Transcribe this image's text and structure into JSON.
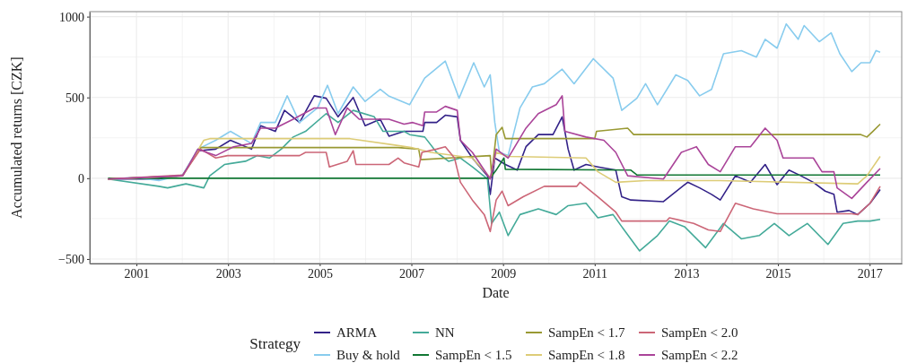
{
  "chart_data": {
    "type": "line",
    "xlabel": "Date",
    "ylabel": "Accumulated returns [CZK]",
    "legend_title": "Strategy",
    "legend": "bottom",
    "grid": true,
    "line_style": "solid",
    "marker": "none",
    "xlim": [
      1999.98,
      2017.7
    ],
    "ylim": [
      -528,
      1031
    ],
    "xticks": [
      2001,
      {
        "value": 2002,
        "label": null
      },
      2003,
      {
        "value": 2004,
        "label": null
      },
      2005,
      {
        "value": 2006,
        "label": null
      },
      2007,
      {
        "value": 2008,
        "label": null
      },
      2009,
      {
        "value": 2010,
        "label": null
      },
      2011,
      {
        "value": 2012,
        "label": null
      },
      2013,
      {
        "value": 2014,
        "label": null
      },
      2015,
      {
        "value": 2016,
        "label": null
      },
      2017
    ],
    "yticks": [
      -500,
      {
        "value": -250,
        "label": null
      },
      0,
      {
        "value": 250,
        "label": null
      },
      500,
      {
        "value": 750,
        "label": null
      },
      1000
    ],
    "series": [
      {
        "name": "ARMA",
        "color": "#332288",
        "x": [
          2000.38,
          2001.49,
          2002.01,
          2002.34,
          2002.73,
          2003.05,
          2003.51,
          2003.71,
          2004.03,
          2004.23,
          2004.56,
          2004.88,
          2005.14,
          2005.4,
          2005.73,
          2005.99,
          2006.32,
          2006.51,
          2006.84,
          2007.03,
          2007.25,
          2007.29,
          2007.55,
          2007.74,
          2008.0,
          2008.07,
          2008.33,
          2008.66,
          2008.72,
          2008.82,
          2009.05,
          2009.31,
          2009.5,
          2009.77,
          2010.09,
          2010.29,
          2010.42,
          2010.55,
          2010.81,
          2011.07,
          2011.46,
          2011.59,
          2011.79,
          2012.5,
          2013.03,
          2013.29,
          2013.55,
          2013.74,
          2014.07,
          2014.4,
          2014.72,
          2014.98,
          2015.24,
          2015.5,
          2015.77,
          2016.03,
          2016.22,
          2016.29,
          2016.55,
          2016.74,
          2017.01,
          2017.23
        ],
        "values": [
          -5,
          -5,
          20,
          170,
          180,
          235,
          180,
          325,
          290,
          420,
          345,
          510,
          495,
          380,
          500,
          325,
          365,
          260,
          290,
          290,
          290,
          345,
          345,
          390,
          380,
          235,
          125,
          15,
          -100,
          125,
          85,
          50,
          195,
          270,
          270,
          380,
          180,
          50,
          85,
          70,
          50,
          -115,
          -135,
          -145,
          -25,
          -60,
          -100,
          -135,
          15,
          -25,
          85,
          -40,
          50,
          15,
          -25,
          -80,
          -100,
          -210,
          -200,
          -225,
          -155,
          -70
        ]
      },
      {
        "name": "Buy & hold",
        "color": "#88CCEE",
        "x": [
          2000.38,
          2000.97,
          2001.49,
          2002.01,
          2002.34,
          2002.73,
          2003.05,
          2003.51,
          2003.71,
          2004.03,
          2004.29,
          2004.56,
          2004.95,
          2005.17,
          2005.4,
          2005.73,
          2005.99,
          2006.32,
          2006.5,
          2006.96,
          2007.29,
          2007.74,
          2008.04,
          2008.36,
          2008.59,
          2008.72,
          2008.82,
          2008.92,
          2009.11,
          2009.37,
          2009.64,
          2009.9,
          2010.29,
          2010.55,
          2010.97,
          2011.4,
          2011.59,
          2011.92,
          2012.11,
          2012.37,
          2012.77,
          2013.03,
          2013.29,
          2013.55,
          2013.81,
          2014.2,
          2014.53,
          2014.72,
          2014.98,
          2015.18,
          2015.44,
          2015.57,
          2015.9,
          2016.16,
          2016.35,
          2016.61,
          2016.81,
          2017.01,
          2017.14,
          2017.23
        ],
        "values": [
          -5,
          5,
          -15,
          20,
          180,
          235,
          290,
          215,
          345,
          345,
          510,
          345,
          435,
          575,
          400,
          565,
          475,
          550,
          510,
          455,
          620,
          725,
          495,
          715,
          565,
          640,
          345,
          160,
          140,
          435,
          565,
          585,
          675,
          585,
          740,
          620,
          420,
          495,
          585,
          455,
          640,
          605,
          510,
          550,
          770,
          790,
          750,
          860,
          805,
          955,
          860,
          945,
          845,
          900,
          770,
          660,
          715,
          715,
          790,
          780
        ]
      },
      {
        "name": "NN",
        "color": "#44AA99",
        "x": [
          2000.38,
          2001.49,
          2001.68,
          2002.08,
          2002.47,
          2002.6,
          2002.92,
          2003.38,
          2003.64,
          2003.9,
          2004.16,
          2004.42,
          2004.69,
          2005.14,
          2005.4,
          2005.73,
          2006.19,
          2006.38,
          2006.84,
          2006.96,
          2007.29,
          2007.55,
          2007.81,
          2008.07,
          2008.33,
          2008.66,
          2008.75,
          2008.92,
          2009.11,
          2009.37,
          2009.77,
          2010.16,
          2010.42,
          2010.81,
          2011.07,
          2011.4,
          2011.59,
          2011.98,
          2012.37,
          2012.63,
          2012.96,
          2013.42,
          2013.81,
          2014.2,
          2014.59,
          2014.92,
          2015.24,
          2015.64,
          2016.09,
          2016.42,
          2016.74,
          2017.01,
          2017.23
        ],
        "values": [
          -5,
          -50,
          -60,
          -35,
          -60,
          15,
          85,
          105,
          140,
          125,
          180,
          255,
          290,
          400,
          345,
          420,
          380,
          290,
          290,
          270,
          255,
          160,
          105,
          125,
          70,
          -5,
          -280,
          -210,
          -355,
          -225,
          -190,
          -225,
          -170,
          -155,
          -245,
          -225,
          -300,
          -450,
          -355,
          -265,
          -300,
          -430,
          -280,
          -375,
          -355,
          -280,
          -355,
          -280,
          -410,
          -280,
          -265,
          -265,
          -255
        ]
      },
      {
        "name": "SampEn < 1.5",
        "color": "#117733",
        "x": [
          2000.38,
          2008.72,
          2008.85,
          2009.02,
          2009.05,
          2011.79,
          2011.92,
          2017.23
        ],
        "values": [
          0,
          0,
          50,
          125,
          55,
          50,
          20,
          20
        ]
      },
      {
        "name": "SampEn < 1.7",
        "color": "#999933",
        "x": [
          2000.38,
          2002.01,
          2002.4,
          2006.71,
          2007.16,
          2007.2,
          2008.72,
          2008.75,
          2008.85,
          2008.98,
          2009.05,
          2011.0,
          2011.04,
          2011.72,
          2011.85,
          2016.81,
          2016.94,
          2017.07,
          2017.23
        ],
        "values": [
          -5,
          15,
          190,
          190,
          180,
          115,
          140,
          15,
          270,
          315,
          245,
          245,
          290,
          310,
          270,
          270,
          255,
          290,
          335
        ]
      },
      {
        "name": "SampEn < 1.8",
        "color": "#DDCC77",
        "x": [
          2000.38,
          2002.01,
          2002.47,
          2002.6,
          2005.66,
          2006.64,
          2007.0,
          2007.42,
          2008.33,
          2008.72,
          2008.85,
          2009.11,
          2010.81,
          2011.07,
          2011.46,
          2012.11,
          2013.74,
          2016.74,
          2016.94,
          2017.23
        ],
        "values": [
          -5,
          15,
          235,
          245,
          245,
          205,
          190,
          160,
          125,
          5,
          160,
          135,
          125,
          40,
          -25,
          -15,
          -15,
          -35,
          15,
          135
        ]
      },
      {
        "name": "SampEn < 2.0",
        "color": "#CC6677",
        "x": [
          2000.38,
          2002.01,
          2002.4,
          2002.73,
          2002.99,
          2004.56,
          2004.69,
          2005.14,
          2005.21,
          2005.6,
          2005.73,
          2005.79,
          2006.51,
          2006.71,
          2006.84,
          2007.16,
          2007.23,
          2007.55,
          2007.74,
          2007.94,
          2008.07,
          2008.33,
          2008.59,
          2008.72,
          2008.85,
          2008.98,
          2009.11,
          2009.44,
          2009.9,
          2010.61,
          2010.68,
          2011.07,
          2011.46,
          2011.59,
          2012.57,
          2012.63,
          2013.16,
          2013.48,
          2013.74,
          2014.07,
          2014.46,
          2014.98,
          2016.61,
          2016.74,
          2017.01,
          2017.23
        ],
        "values": [
          -5,
          20,
          180,
          125,
          140,
          140,
          160,
          160,
          70,
          105,
          170,
          85,
          85,
          125,
          95,
          70,
          160,
          180,
          195,
          125,
          -25,
          -135,
          -225,
          -330,
          -135,
          -80,
          -170,
          -115,
          -50,
          -50,
          -25,
          -115,
          -210,
          -265,
          -265,
          -245,
          -280,
          -320,
          -330,
          -155,
          -190,
          -220,
          -220,
          -225,
          -155,
          -50
        ]
      },
      {
        "name": "SampEn < 2.2",
        "color": "#AA4499",
        "x": [
          2000.38,
          2002.01,
          2002.34,
          2002.73,
          2003.12,
          2003.51,
          2003.71,
          2004.03,
          2004.42,
          2004.88,
          2005.14,
          2005.34,
          2005.6,
          2005.86,
          2006.51,
          2006.84,
          2007.03,
          2007.25,
          2007.29,
          2007.55,
          2007.74,
          2008.0,
          2008.07,
          2008.33,
          2008.72,
          2008.85,
          2009.11,
          2009.5,
          2009.77,
          2010.16,
          2010.29,
          2010.35,
          2010.81,
          2011.2,
          2011.46,
          2011.72,
          2012.5,
          2012.89,
          2013.22,
          2013.48,
          2013.74,
          2014.07,
          2014.4,
          2014.72,
          2014.98,
          2015.11,
          2015.77,
          2015.96,
          2016.22,
          2016.29,
          2016.61,
          2016.94,
          2017.23
        ],
        "values": [
          -5,
          15,
          180,
          140,
          195,
          215,
          310,
          310,
          365,
          435,
          435,
          270,
          435,
          365,
          365,
          335,
          345,
          325,
          410,
          410,
          445,
          420,
          235,
          160,
          -5,
          180,
          125,
          310,
          400,
          455,
          510,
          290,
          255,
          235,
          160,
          15,
          -5,
          160,
          195,
          85,
          40,
          195,
          195,
          310,
          235,
          125,
          125,
          40,
          40,
          -60,
          -125,
          -25,
          60
        ]
      }
    ]
  }
}
